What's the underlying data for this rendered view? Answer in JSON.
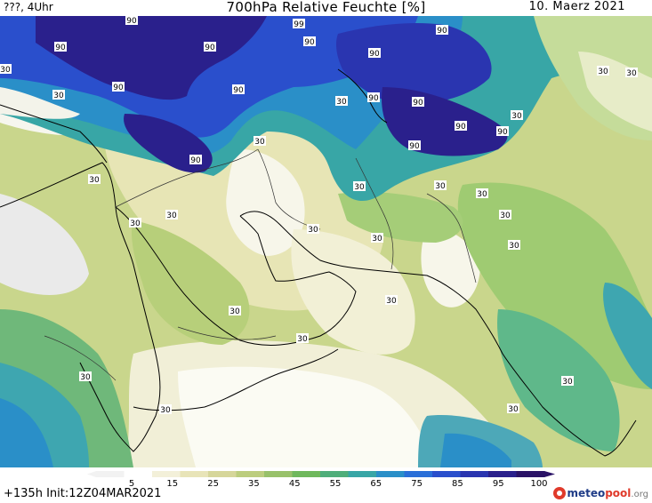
{
  "header": {
    "left": "???, 4Uhr",
    "title": "700hPa Relative Feuchte [%]",
    "date": "10. Maerz 2021"
  },
  "footer": {
    "run_info": "+135h  Init:12Z04MAR2021",
    "logo": {
      "meteo": "meteo",
      "pool": "pool",
      "org": ".org"
    }
  },
  "colorbar": {
    "ticks": [
      "5",
      "15",
      "25",
      "35",
      "45",
      "55",
      "65",
      "75",
      "85",
      "95",
      "100"
    ],
    "colors": [
      "#f2f2f2",
      "#ffffff",
      "#f3f0d9",
      "#e8e4b8",
      "#d6d69a",
      "#bccd7e",
      "#98c16a",
      "#6fb85c",
      "#4fae7a",
      "#38a6a6",
      "#2a8fc8",
      "#2a6fd8",
      "#2a4fcc",
      "#2a35b0",
      "#2a208c",
      "#2a1266"
    ]
  },
  "contour_labels": [
    {
      "text": "90"
    },
    {
      "text": "90"
    },
    {
      "text": "99"
    },
    {
      "text": "90"
    },
    {
      "text": "90"
    },
    {
      "text": "90"
    },
    {
      "text": "90"
    },
    {
      "text": "90"
    },
    {
      "text": "90"
    },
    {
      "text": "90"
    },
    {
      "text": "90"
    },
    {
      "text": "90"
    },
    {
      "text": "90"
    },
    {
      "text": "90"
    },
    {
      "text": "90"
    },
    {
      "text": "30"
    },
    {
      "text": "30"
    },
    {
      "text": "30"
    },
    {
      "text": "30"
    },
    {
      "text": "30"
    },
    {
      "text": "30"
    },
    {
      "text": "30"
    },
    {
      "text": "30"
    },
    {
      "text": "30"
    },
    {
      "text": "30"
    },
    {
      "text": "30"
    },
    {
      "text": "30"
    },
    {
      "text": "30"
    },
    {
      "text": "30"
    },
    {
      "text": "30"
    },
    {
      "text": "30"
    },
    {
      "text": "30"
    },
    {
      "text": "30"
    },
    {
      "text": "30"
    },
    {
      "text": "30"
    },
    {
      "text": "30"
    },
    {
      "text": "30"
    },
    {
      "text": "30"
    },
    {
      "text": "30"
    }
  ]
}
